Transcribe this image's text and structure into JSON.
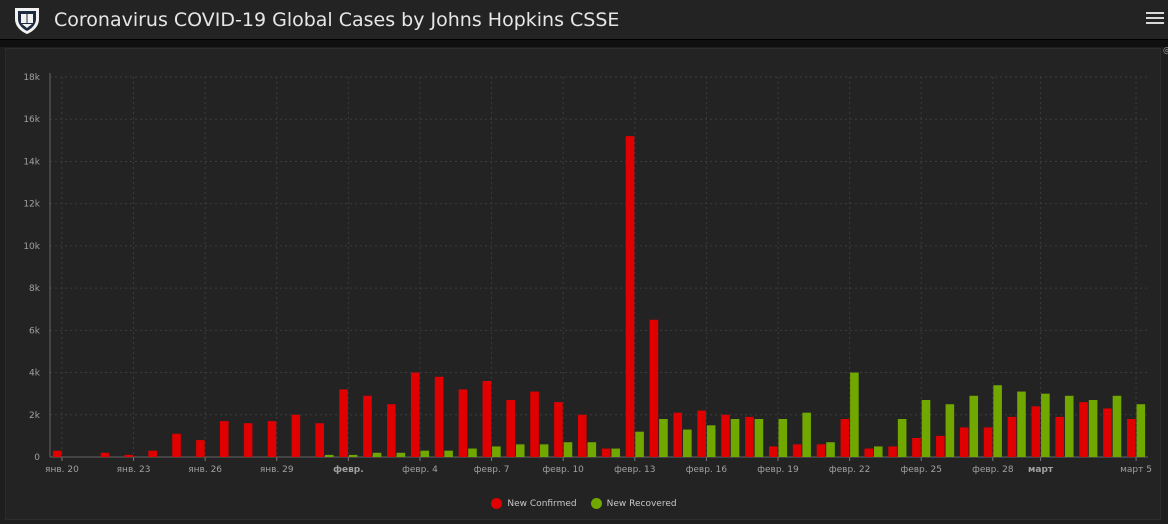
{
  "header": {
    "title": "Coronavirus COVID-19 Global Cases by Johns Hopkins CSSE",
    "logo_icon": "university-shield-icon",
    "menu_icon": "hamburger-menu-icon"
  },
  "colors": {
    "confirmed": "#e00000",
    "recovered": "#70a800",
    "background": "#232323",
    "grid": "#3c3c3c",
    "axis_text": "#a0a0a0"
  },
  "chart_data": {
    "type": "bar",
    "title": "",
    "xlabel": "",
    "ylabel": "",
    "ylim": [
      0,
      18000
    ],
    "yticks": [
      0,
      2000,
      4000,
      6000,
      8000,
      10000,
      12000,
      14000,
      16000,
      18000
    ],
    "ytick_labels": [
      "0",
      "2k",
      "4k",
      "6k",
      "8k",
      "10k",
      "12k",
      "14k",
      "16k",
      "18k"
    ],
    "grid": true,
    "legend_position": "bottom-center",
    "categories": [
      "2020-01-20",
      "2020-01-21",
      "2020-01-22",
      "2020-01-23",
      "2020-01-24",
      "2020-01-25",
      "2020-01-26",
      "2020-01-27",
      "2020-01-28",
      "2020-01-29",
      "2020-01-30",
      "2020-01-31",
      "2020-02-01",
      "2020-02-02",
      "2020-02-03",
      "2020-02-04",
      "2020-02-05",
      "2020-02-06",
      "2020-02-07",
      "2020-02-08",
      "2020-02-09",
      "2020-02-10",
      "2020-02-11",
      "2020-02-12",
      "2020-02-13",
      "2020-02-14",
      "2020-02-15",
      "2020-02-16",
      "2020-02-17",
      "2020-02-18",
      "2020-02-19",
      "2020-02-20",
      "2020-02-21",
      "2020-02-22",
      "2020-02-23",
      "2020-02-24",
      "2020-02-25",
      "2020-02-26",
      "2020-02-27",
      "2020-02-28",
      "2020-02-29",
      "2020-03-01",
      "2020-03-02",
      "2020-03-03",
      "2020-03-04",
      "2020-03-05"
    ],
    "xtick_labels": [
      {
        "index": 0,
        "label": "янв. 20",
        "bold": false
      },
      {
        "index": 3,
        "label": "янв. 23",
        "bold": false
      },
      {
        "index": 6,
        "label": "янв. 26",
        "bold": false
      },
      {
        "index": 9,
        "label": "янв. 29",
        "bold": false
      },
      {
        "index": 12,
        "label": "февр.",
        "bold": true
      },
      {
        "index": 15,
        "label": "февр. 4",
        "bold": false
      },
      {
        "index": 18,
        "label": "февр. 7",
        "bold": false
      },
      {
        "index": 21,
        "label": "февр. 10",
        "bold": false
      },
      {
        "index": 24,
        "label": "февр. 13",
        "bold": false
      },
      {
        "index": 27,
        "label": "февр. 16",
        "bold": false
      },
      {
        "index": 30,
        "label": "февр. 19",
        "bold": false
      },
      {
        "index": 33,
        "label": "февр. 22",
        "bold": false
      },
      {
        "index": 36,
        "label": "февр. 25",
        "bold": false
      },
      {
        "index": 39,
        "label": "февр. 28",
        "bold": false
      },
      {
        "index": 41,
        "label": "март",
        "bold": true
      },
      {
        "index": 45,
        "label": "март 5",
        "bold": false
      }
    ],
    "series": [
      {
        "name": "New Confirmed",
        "color": "#e00000",
        "values": [
          300,
          0,
          200,
          100,
          300,
          1100,
          800,
          1700,
          1600,
          1700,
          2000,
          1600,
          3200,
          2900,
          2500,
          4000,
          3800,
          3200,
          3600,
          2700,
          3100,
          2600,
          2000,
          400,
          15200,
          6500,
          2100,
          2200,
          2000,
          1900,
          500,
          600,
          600,
          1800,
          400,
          500,
          900,
          1000,
          1400,
          1400,
          1900,
          2400,
          1900,
          2600,
          2300,
          1800
        ]
      },
      {
        "name": "New Recovered",
        "color": "#70a800",
        "values": [
          0,
          0,
          0,
          0,
          0,
          0,
          0,
          0,
          0,
          0,
          0,
          100,
          100,
          200,
          200,
          300,
          300,
          400,
          500,
          600,
          600,
          700,
          700,
          400,
          1200,
          1800,
          1300,
          1500,
          1800,
          1800,
          1800,
          2100,
          700,
          4000,
          500,
          1800,
          2700,
          2500,
          2900,
          3400,
          3100,
          3000,
          2900,
          2700,
          2900,
          2500
        ]
      }
    ]
  }
}
